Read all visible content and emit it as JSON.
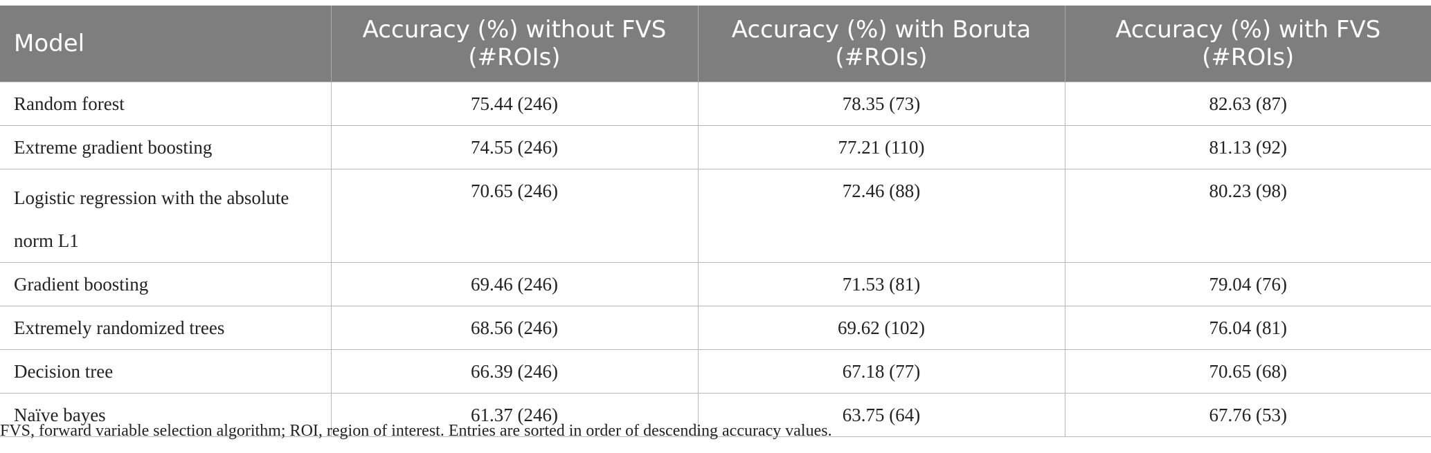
{
  "table": {
    "headers": [
      {
        "line1": "Model",
        "line2": ""
      },
      {
        "line1": "Accuracy (%) without FVS",
        "line2": "(#ROIs)"
      },
      {
        "line1": "Accuracy (%) with Boruta",
        "line2": "(#ROIs)"
      },
      {
        "line1": "Accuracy (%) with FVS",
        "line2": "(#ROIs)"
      }
    ],
    "rows": [
      {
        "model": "Random forest",
        "without_fvs": "75.44 (246)",
        "boruta": "78.35 (73)",
        "with_fvs": "82.63 (87)"
      },
      {
        "model": "Extreme gradient boosting",
        "without_fvs": "74.55 (246)",
        "boruta": "77.21 (110)",
        "with_fvs": "81.13 (92)"
      },
      {
        "model": "Logistic regression with the absolute norm L1",
        "without_fvs": "70.65 (246)",
        "boruta": "72.46 (88)",
        "with_fvs": "80.23 (98)"
      },
      {
        "model": "Gradient boosting",
        "without_fvs": "69.46 (246)",
        "boruta": "71.53 (81)",
        "with_fvs": "79.04 (76)"
      },
      {
        "model": "Extremely randomized trees",
        "without_fvs": "68.56 (246)",
        "boruta": "69.62 (102)",
        "with_fvs": "76.04 (81)"
      },
      {
        "model": "Decision tree",
        "without_fvs": "66.39 (246)",
        "boruta": "67.18 (77)",
        "with_fvs": "70.65 (68)"
      },
      {
        "model": "Naïve bayes",
        "without_fvs": "61.37 (246)",
        "boruta": "63.75 (64)",
        "with_fvs": "67.76 (53)"
      }
    ]
  },
  "footnote": "FVS, forward variable selection algorithm; ROI, region of interest. Entries are sorted in order of descending accuracy values.",
  "colors": {
    "header_bg": "#7d7e7d",
    "header_text": "#ffffff",
    "grid_line": "#b8b8b8"
  }
}
